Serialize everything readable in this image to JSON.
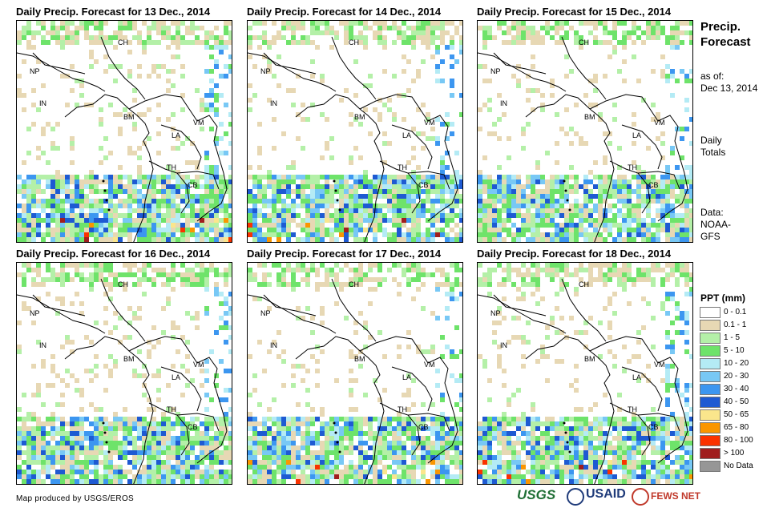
{
  "panels": [
    {
      "title": "Daily Precip. Forecast for 13 Dec., 2014"
    },
    {
      "title": "Daily Precip. Forecast for 14 Dec., 2014"
    },
    {
      "title": "Daily Precip. Forecast for 15 Dec., 2014"
    },
    {
      "title": "Daily Precip. Forecast for 16 Dec., 2014"
    },
    {
      "title": "Daily Precip. Forecast for 17 Dec., 2014"
    },
    {
      "title": "Daily Precip. Forecast for 18 Dec., 2014"
    }
  ],
  "country_labels": {
    "ch": "CH",
    "np": "NP",
    "in": "IN",
    "bm": "BM",
    "vm": "VM",
    "la": "LA",
    "th": "TH",
    "cb": "CB"
  },
  "side": {
    "title_line1": "Precip.",
    "title_line2": "Forecast",
    "asof_line1": "as of:",
    "asof_line2": "Dec 13, 2014",
    "totals_line1": "Daily",
    "totals_line2": "Totals",
    "data_line1": "Data:",
    "data_line2": "NOAA-",
    "data_line3": "GFS"
  },
  "legend": {
    "title": "PPT (mm)",
    "items": [
      {
        "label": "0 - 0.1",
        "color": "#ffffff"
      },
      {
        "label": "0.1 - 1",
        "color": "#e7d8b4"
      },
      {
        "label": "1 - 5",
        "color": "#b4f0a8"
      },
      {
        "label": "5 - 10",
        "color": "#6ee36a"
      },
      {
        "label": "10 - 20",
        "color": "#b4ebf5"
      },
      {
        "label": "20 - 30",
        "color": "#78c8f5"
      },
      {
        "label": "30 - 40",
        "color": "#3c96f0"
      },
      {
        "label": "40 - 50",
        "color": "#1e5ad2"
      },
      {
        "label": "50 - 65",
        "color": "#fae68c"
      },
      {
        "label": "65 - 80",
        "color": "#fa9600"
      },
      {
        "label": "80 - 100",
        "color": "#fa3200"
      },
      {
        "label": "> 100",
        "color": "#a01e1e"
      },
      {
        "label": "No Data",
        "color": "#969696"
      }
    ]
  },
  "credit": "Map produced by USGS/EROS",
  "logos": {
    "usgs": "USGS",
    "usaid": "USAID",
    "fews": "FEWS NET"
  }
}
